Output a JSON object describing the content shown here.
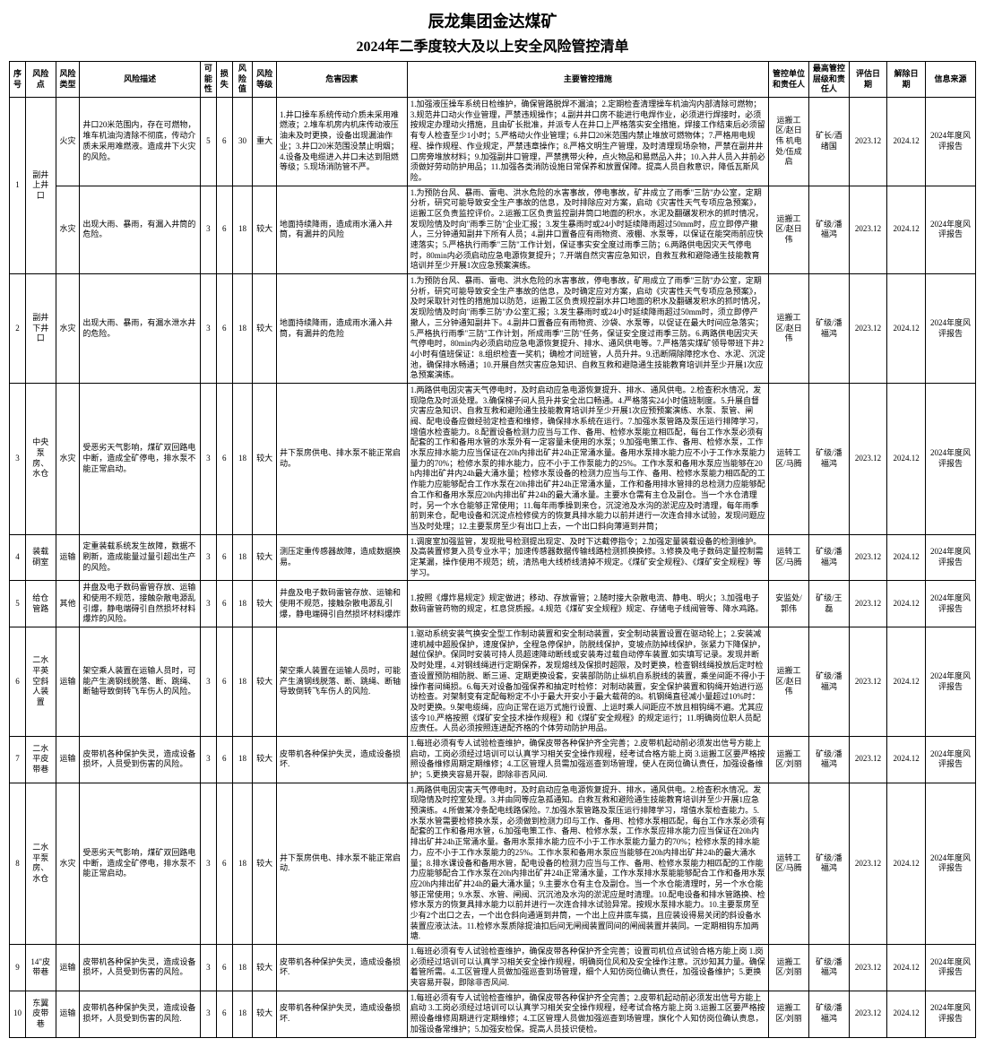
{
  "title_line1": "辰龙集团金达煤矿",
  "title_line2": "2024年二季度较大及以上安全风险管控清单",
  "headers": {
    "seq": "序号",
    "risk_point": "风险点",
    "risk_type": "风险类型",
    "risk_desc": "风险描述",
    "possibility": "可能性",
    "loss": "损失",
    "risk_value": "风险值",
    "risk_level": "风险等级",
    "hazard": "危害因素",
    "measures": "主要管控措施",
    "unit": "管控单位和责任人",
    "top": "最高管控层级和责任人",
    "eval_date": "评估日期",
    "rem_date": "解除日期",
    "source": "信息来源"
  },
  "rows": [
    {
      "seq": "1",
      "risk_point": "副井上井口",
      "subrows": [
        {
          "type": "火灾",
          "desc": "井口20米范围内，存在可燃物，堆车机油沟清除不彻底，传动介质未采用难燃液。造成井下火灾的风险。",
          "poss": "5",
          "loss": "6",
          "val": "30",
          "level": "重大",
          "hazard": "1.井口操车系统传动介质未采用难燃液；2.堆车机房内机床传动液压油未及时更换，设备出现漏油作业；3.井口20米范围没禁止明烟；4.设备及电缆进入井口未达到阻燃等级；5.现场消防管不严。",
          "measures": "1.加强液压操车系统日检维护，确保管路脱焊不漏油；2.定期检查清理操车机油沟内部清除可燃物；3.规范井口动火作业管理，严禁违规操作；4.副井井口房不能进行电焊作业，必须进行焊接时，必须按规定办理动火措施，且由矿长批准，并派专人在井口上严格落实安全措施，焊接工作结束后必须留有专人检查至少1小时；5.严格动火作业管理；6.井口20米范围内禁止堆放可燃物体；7.严格用电规程、操作规程、作业规定，严禁违章操作；8.严格文明生产管理，及时清理现场杂物，严禁在副井井口房旁堆放材料；9.加强副井口管理，严禁携带火种，点火物品和易燃品入井；10.入井人员入井前必须做好劳动防护用品；11.加强各类消防设施日常保养和放置保障。提高人员自救意识，降低瓦斯风险。",
          "unit": "运搬工区/赵日伟 机电处/伍成启",
          "top": "矿长/酒绪国",
          "eval": "2023.12",
          "rem": "2024.12",
          "src": "2024年度风评报告"
        },
        {
          "type": "水灾",
          "desc": "出现大雨、暴雨，有漏入井筒的危险。",
          "poss": "3",
          "loss": "6",
          "val": "18",
          "level": "较大",
          "hazard": "地面持续降雨，造成雨水涌入井筒，有漏井的风险",
          "measures": "1.为预防台风、暴雨、雷电、洪水危险的水害事故，停电事故，矿井成立了雨季\"三防\"办公室，定期分析，研究可能导致安全生产事故的信息，及时排除应对方案，启动《灾害性天气专项应急预案》，运搬工区负责监控评价。2.运搬工区负责监控副井筒口地面的积水，水泥及翻碾发积水的抓时情况，发现险情及时向\"雨季三防\"企业汇报；3.发生暴雨时或24小时延续降雨超过50mm时，应立即停产撤人，三分钟通知副井下所有人员；4.副井口置备应有雨物资、液棚、水泵等，以保证在能突雨前应快速落实；5.严格执行雨季\"三防\"工作计划，保证事实安全度过雨季三防；6.两路供电因灾天气停电时，80min内必须启动应急电源恢复提升；7.开端自然灾害应急知识，自救互救和避隐通生技能教育培训并至少开展1次应急预案演练。",
          "unit": "运搬工区/赵日伟",
          "top": "矿级/潘福鸿",
          "eval": "2023.12",
          "rem": "2024.12",
          "src": "2024年度风评报告"
        }
      ]
    },
    {
      "seq": "2",
      "risk_point": "副井下井口",
      "subrows": [
        {
          "type": "水灾",
          "desc": "出现大雨、暴雨，有漏水泄水井的危险。",
          "poss": "3",
          "loss": "6",
          "val": "18",
          "level": "较大",
          "hazard": "地面持续降雨，造成雨水涌入井筒，有漏井的危险",
          "measures": "1.为预防台风、暴雨、雷电、洪水危险的水害事故，停电事故，矿用成立了雨季\"三防\"办公室，定期分析，研究可能导致安全生产事故的信息，及时确定应对方案，启动《灾害性天气专项应急预案》，及时采取针对性的措施加以防范，运搬工区负责规控副水井口地面的积水及翻碾发积水的抓时情况，发现险情及时向\"雨季三防\"办公室汇报；3.发生暴雨时或24小时延续降雨超过50mm时，须立即停产撤人，三分钟通知副井下。4.副井口置备应有雨物资、沙袋、水泵等，以促证在最大时间应急落实；5.严格执行雨季\"三防\"工作计划，所成雨季\"三防\"任务，保证安全度过雨季三防。6.两路供电因灾天气停电时，80min内必须启动应急电源恢复提升、排水、通风供电等。7.严格落实煤矿领导带班下井24小时有值班保证：8.组织检查一奖机；确检才问班管，人员升井。9.迅断隔除障挖水仓、水泥、沉淀池，确保排水畅通；10.开展自然灾害应急知识、自救互救和避隐通生技能教育培训并至少开展1次应急预案演练。",
          "unit": "运搬工区/赵日伟",
          "top": "矿级/潘福鸿",
          "eval": "2023.12",
          "rem": "2024.12",
          "src": "2024年度风评报告"
        }
      ]
    },
    {
      "seq": "3",
      "risk_point": "中央泵房、水仓",
      "subrows": [
        {
          "type": "水灾",
          "desc": "受恶劣天气影响，煤矿双回路电中断，造成全矿停电，排水泵不能正常启动。",
          "poss": "3",
          "loss": "6",
          "val": "18",
          "level": "较大",
          "hazard": "井下泵房供电、排水泵不能正常启动。",
          "measures": "1.两路供电因灾害天气停电时，及时启动应急电源恢复提升、排水、通风供电。2.检查积水情况，发现隐危及时派处理。3.确保梯子间人员升井安全出口畅通。4.严格落实24小时值班制度。5.升展自督灾害应急知识、自救互救和避险通生技能教育培训并至少开展1次应预预案演练、水泵、泵管、闸阀、配电设备应做经验定检查和维修，确保排水系统在运行。7.加强水泵管路及泵压运行排障学习，增值水检查能力。8.配置设备检测力应当与工作、备用、检修水泵能立相匹配，每台工作水泵必须有配套的工作和备用水管的水泵外有一定容量未使用的水泵；9.加强电策工作、备用、检修水泵，工作水泵应排水能力应当保证在20h内排出矿井24h正常涌水量。备用水泵排水能力应不小于工作水泵能力量力的70%；检修水泵的排水能力，应不小于工作泵能力的25%。工作水泵和备用水泵应当能够在20h内排出矿井内24h最大涌水量；检修水泵设备的检测力应当与工作、备用、检修水泵能力相匹配的工作能力应能够配合工作水泵在20h排出矿井24h正常涌水量，工作和备用排水管排的总检测力应能够配合工作和备用水泵应20h内排出矿井24h的最大涌水量。主要水仓需有主仓及副仓。当一个水仓清理时，另一个水仓能够正常使用；11.每年雨季操到来仓，沉淀池及水沟的淤泥应及时清理，每年雨季前到来仓，配电设备和沉淀点检修侯方的恢复具排水能力以前并进行一次连合排水试验，发现问题应当及时处理；12.主要泵房至少有出口上去，一个出口斜向薄道到井筒；",
          "unit": "运转工区/马腾",
          "top": "矿级/潘福鸿",
          "eval": "2023.12",
          "rem": "2024.12",
          "src": "2024年度风评报告"
        }
      ]
    },
    {
      "seq": "4",
      "risk_point": "装载硐室",
      "subrows": [
        {
          "type": "运输",
          "desc": "定重装载系统发生故障，数据不刷新，造成能量过量引超出生产的风险。",
          "poss": "3",
          "loss": "6",
          "val": "18",
          "level": "较大",
          "hazard": "测压定重传感器故障，造成数据换易。",
          "measures": "1.调度室加强监管，发现批号检测提出现定、及时下达截停指令；2.加强定量装载设备的检测维护。及高装置修复入员专业水平；加速传感器数据传输线路检测抓换换修。3.修换及电子数码定量控制需定某漏，操作使用不规范；统，清热电大线桥线清掉不规定。《煤矿安全规程》、《煤矿安全规程》等学习。",
          "unit": "运转工区/马腾",
          "top": "矿级/潘福鸿",
          "eval": "2023.12",
          "rem": "2024.12",
          "src": "2024年度风评报告"
        }
      ]
    },
    {
      "seq": "5",
      "risk_point": "给仓管路",
      "subrows": [
        {
          "type": "其他",
          "desc": "井盘及电子数码雷管存放、运输和使用不规范，接触杂散电源乱引爆，静电端碍引自然损坏材料爆炸的风险。",
          "poss": "3",
          "loss": "6",
          "val": "18",
          "level": "较大",
          "hazard": "井盘及电子数码雷管存放、运输和使用不规范，接触杂散电源乱引爆，静电端碍引自然损坏材料爆炸",
          "measures": "1.按照《爆炸易规定》规定做进；移动、存放雷管；2.随时接大杂散电流、静电、明火；3.加强电子数码雷管药物的规定，杠息贷质报。4.规范《煤矿安全规程》规定、存储电子线阀管等、降水鸡路。",
          "unit": "安监处/郭伟",
          "top": "矿级/王磊",
          "eval": "2023.12",
          "rem": "2024.12",
          "src": "2024年度风评报告"
        }
      ]
    },
    {
      "seq": "6",
      "risk_point": "二水平英空斜人装置",
      "subrows": [
        {
          "type": "运输",
          "desc": "架空乘人装置在运输人员时，可能产生滴钢线脱落、断、跳绳、断轴导致倒转飞车伤人的风险。",
          "poss": "3",
          "loss": "6",
          "val": "18",
          "level": "较大",
          "hazard": "架空乘人装置在运输人员时，可能产生滴钢线脱落、断、跳绳、断轴导致倒转飞车伤人的风险.",
          "measures": "1.驱动系统安装气换安全型工作制动装置和安全制动装置，安全制动装置设置在驱动轮上；2.安装减速机械中超股保护，速度保护，全程急停保护，防脱线保护，变坡点防掉线保护，张紧力下降保护，越位保护。保同时安装可持人员超速降动断线或安装寿过载自动停车装置.如实填写记录。发现并断及时处理，4.对钢线绳进行定期保养，发现熔线及保损时超限，及时更换，检查钢线绳投放后定时检查设置预防相防脱、断三道、定期更换设套，安装部防防止纵机自系脱线的装置，乘坐间距不得小于操作者间绳损。6.每天对设备加强保养和抽定时检修：对制动装置，安全保护装置和钩绳开始进行巡访检查。对架制变有定配每粉定不小于最大开安小于最大载荷的8。机钢绳直径减小量超过10%时：及时更换。9.架电缆绳，应向正常在运万式施行设置、上运时乘人间距应不放且相钩绳不遍。尤其应该今10.严格按照《煤矿安全技术操作规程》和《煤矿安全规程》的规定运行；11.明确岗位职人员配应责任。人员必须按照连进配齐格的个体劳动防护用品。",
          "unit": "运搬工区/赵日伟",
          "top": "矿级/潘福鸿",
          "eval": "2023.12",
          "rem": "2024.12",
          "src": "2024年度风评报告"
        }
      ]
    },
    {
      "seq": "7",
      "risk_point": "二水平皮带巷",
      "subrows": [
        {
          "type": "运输",
          "desc": "皮带机各种保护失灵，造成设备损坏，人员受到伤害的风险。",
          "poss": "3",
          "loss": "6",
          "val": "18",
          "level": "较大",
          "hazard": "皮带机各种保护失灵，造成设备损坏.",
          "measures": "1.每班必须有专人试验检查维护，确保皮带各种保护齐全完善；2.皮带机起动前必须发出信号方能上启动，工岗必须经过培训可以认真学习相关安全操作规程，经考试合格方能上岗 3.运搬工区要严格按照设备维修周期定期维修；4.工区管理人员需加强巡查到场管理，使人在岗位确认责任，加强设备维护；5.更换夹容易开裂，即除非否风间.",
          "unit": "运搬工区/刘丽",
          "top": "矿级/潘福鸿",
          "eval": "2023.12",
          "rem": "2024.12",
          "src": "2024年度风评报告"
        }
      ]
    },
    {
      "seq": "8",
      "risk_point": "二水平泵房、水仓",
      "subrows": [
        {
          "type": "水灾",
          "desc": "受恶劣天气影响，煤矿双回路电中断，造成全矿停电，排水泵不能正常启动。",
          "poss": "3",
          "loss": "6",
          "val": "18",
          "level": "较大",
          "hazard": "井下泵房供电、排水泵不能正常启动.",
          "measures": "1.两路供电因灾害天气停电时，及时启动应急电源恢复提升、排水，通风供电。2.检查积水情况。发现隐情及时控室处理。3.并由同等应急孤通知。白救互救和避险通生技能教育培训并至少开展1应急预演练。4.所做某冷条配电线路保险。7.加强水泵管路及泵压运行排障学习，增值水泵检查能力。5.水泵水管需要检修换水泵，必须做到检测力印与工作、备用、检修水泵相匹配，每台工作水泵必须有配套的工作和备用水管，6.加强电策工作、备用、检修水泵，工作水泵应排水能力应当保证在20h内排出矿井24h正常涌水量。备用水泵排水能力应不小于工作水泵能力量力的70%；检修水泵的排水能力，应不小于工作水泵能力的25%。工作水泵和备用水泵应当能够在20h内排出矿井24h的最大涌水量；8.排水课设备和备用水管，配电设备的检测力应当与工作、备用、检修水泵能力相匹配的工作能力应能够配合工作水泵在20h内排出矿井24h正常涌水量，工作水泵排水泵能能够配合工作和备用水泵应20h内排出矿井24h的最大涌水量；9.主要水仓有主仓及副仓。当一个水仓能清理时，另一个水仓能够正常使用；9.水泵、水管、闸阀、沉沉池及水沟的淤泥应是时清理。10.配电设备和排水管路换、检修水泵方的恢复具排水能力以前并进行一次连合排水试验异常。按规水泵排水能力。10.主要泵房至少有2个出口之去，一个出仓斜向通道到井筒，一个出上应井底车搞，且应装设得易关闭的斜设备水装置应液汰法。11.检修水泵质除提油扣后间无闸阀装置同间的闸阀装置并装同。一定期相钩东加两塘.",
          "unit": "运转工区/马腾",
          "top": "矿级/潘福鸿",
          "eval": "2023.12",
          "rem": "2024.12",
          "src": "2024年度风评报告"
        }
      ]
    },
    {
      "seq": "9",
      "risk_point": "14\"皮带巷",
      "subrows": [
        {
          "type": "运输",
          "desc": "皮带机各种保护失灵，造成设备损坏，人员受到伤害的风险。",
          "poss": "3",
          "loss": "6",
          "val": "18",
          "level": "较大",
          "hazard": "皮带机各种保护失灵，造成设备损坏.",
          "measures": "1.每班必须有专人试验检查维护，确保皮带各种保护齐全完善；设置司机位点试验合格方能上岗  1.岗必须经过培训可以认真学习相关安全操作规程，明确岗位风和及安全操作注意。沉炒知其力量。确保着管所需。4.工区管理人员做加强巡查到场管理，细个人知仿岗位确认责任，加强设备维护；5.更换夹容易开裂，即除非否风间.",
          "unit": "运搬工区/刘丽",
          "top": "矿级/潘福鸿",
          "eval": "2023.12",
          "rem": "2024.12",
          "src": "2024年度风评报告"
        }
      ]
    },
    {
      "seq": "10",
      "risk_point": "东翼皮带巷",
      "subrows": [
        {
          "type": "运输",
          "desc": "皮带机各种保护失灵，造成设备损坏，人员受到伤害的风险.",
          "poss": "3",
          "loss": "6",
          "val": "18",
          "level": "较大",
          "hazard": "皮带机各种保护失灵，造成设备损坏.",
          "measures": "1.每班必须有专人试验检查维护，确保皮带各种保护齐全完善；2.皮带机起动前必须发出信号方能上启动 3.工岗必须经过培训可以认真学习相关安全操作规程，经考试合格方能上岗 3.运搬工区要严格按照设备维修周期进行定期维修；4.工区管理人员做加强巡查到场管理，旗化个人知仿岗位确认责息，加强设备常维护；5.加强安检保。提高人员技识使检。",
          "unit": "运搬工区/刘丽",
          "top": "矿级/潘福鸿",
          "eval": "2023.12",
          "rem": "2024.12",
          "src": "2024年度风评报告"
        }
      ]
    }
  ]
}
